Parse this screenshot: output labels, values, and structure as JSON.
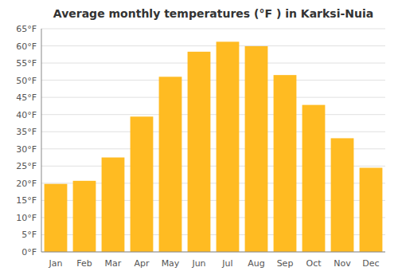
{
  "chart_data": {
    "type": "bar",
    "title": "Average monthly temperatures (°F ) in Karksi-Nuia",
    "categories": [
      "Jan",
      "Feb",
      "Mar",
      "Apr",
      "May",
      "Jun",
      "Jul",
      "Aug",
      "Sep",
      "Oct",
      "Nov",
      "Dec"
    ],
    "values": [
      19.8,
      20.7,
      27.5,
      39.4,
      51.0,
      58.3,
      61.2,
      59.9,
      51.5,
      42.8,
      33.1,
      24.5
    ],
    "color": "#FFBB22",
    "ylim": [
      0,
      65
    ],
    "yticks": [
      {
        "value": 0,
        "label": "0°F"
      },
      {
        "value": 5,
        "label": "5°F"
      },
      {
        "value": 10,
        "label": "10°F"
      },
      {
        "value": 15,
        "label": "15°F"
      },
      {
        "value": 20,
        "label": "20°F"
      },
      {
        "value": 25,
        "label": "25°F"
      },
      {
        "value": 30,
        "label": "30°F"
      },
      {
        "value": 35,
        "label": "35°F"
      },
      {
        "value": 40,
        "label": "40°F"
      },
      {
        "value": 45,
        "label": "45°F"
      },
      {
        "value": 50,
        "label": "50°F"
      },
      {
        "value": 55,
        "label": "55°F"
      },
      {
        "value": 60,
        "label": "60°F"
      },
      {
        "value": 65,
        "label": "65°F"
      }
    ],
    "grid": true
  }
}
